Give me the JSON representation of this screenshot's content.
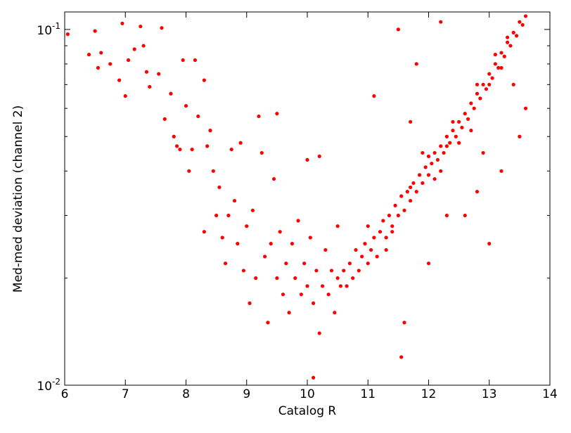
{
  "chart_data": {
    "type": "scatter",
    "xlabel": "Catalog R",
    "ylabel": "Med-med deviation (channel 2)",
    "color": "#ff0000",
    "xlim": [
      6,
      14
    ],
    "xticks": [
      6,
      7,
      8,
      9,
      10,
      11,
      12,
      13,
      14
    ],
    "ylim": [
      0.01,
      0.112
    ],
    "ylog": true,
    "yticks": [
      {
        "value": 0.01,
        "label": "10^-2"
      },
      {
        "value": 0.1,
        "label": "10^-1"
      }
    ],
    "yminorticks": [
      0.02,
      0.03,
      0.04,
      0.05,
      0.06,
      0.07,
      0.08,
      0.09
    ],
    "x": [
      6.05,
      6.4,
      6.5,
      6.55,
      6.6,
      6.75,
      6.9,
      6.95,
      7.0,
      7.05,
      7.15,
      7.25,
      7.3,
      7.35,
      7.4,
      7.55,
      7.6,
      7.65,
      7.75,
      7.8,
      7.85,
      7.9,
      7.95,
      8.0,
      8.1,
      8.05,
      8.15,
      8.2,
      8.3,
      8.35,
      8.4,
      8.45,
      8.3,
      8.5,
      8.55,
      8.6,
      8.65,
      8.7,
      8.75,
      8.8,
      8.85,
      8.9,
      8.95,
      9.0,
      9.05,
      9.1,
      9.15,
      9.2,
      9.25,
      9.3,
      9.35,
      9.4,
      9.45,
      9.5,
      9.5,
      9.55,
      9.6,
      9.65,
      9.7,
      9.75,
      9.8,
      9.85,
      9.9,
      9.95,
      10.0,
      10.0,
      10.05,
      10.1,
      10.1,
      10.15,
      10.2,
      10.2,
      10.25,
      10.3,
      10.35,
      10.4,
      10.45,
      10.5,
      10.5,
      10.55,
      10.6,
      10.65,
      10.7,
      10.75,
      10.8,
      10.85,
      10.9,
      10.95,
      11.0,
      11.0,
      11.05,
      11.1,
      11.15,
      11.2,
      11.25,
      11.3,
      11.35,
      11.4,
      11.45,
      11.5,
      11.55,
      11.6,
      11.65,
      11.7,
      11.75,
      11.8,
      11.85,
      11.9,
      11.95,
      12.0,
      12.0,
      12.05,
      12.1,
      12.15,
      12.2,
      12.25,
      12.3,
      12.35,
      12.4,
      12.45,
      12.5,
      12.55,
      12.6,
      12.65,
      12.7,
      12.75,
      12.8,
      12.85,
      12.9,
      12.95,
      13.0,
      13.05,
      13.1,
      13.15,
      13.2,
      13.25,
      13.3,
      13.35,
      13.4,
      13.45,
      13.5,
      13.55,
      13.6,
      11.55,
      11.6,
      11.7,
      12.0,
      12.3,
      12.8,
      13.0,
      13.2,
      13.5,
      13.6,
      11.1,
      11.5,
      12.2,
      12.9,
      11.8,
      12.6,
      13.4,
      11.3,
      11.7,
      12.1,
      12.4,
      12.7,
      13.1,
      13.3,
      12.5,
      11.9,
      12.2,
      12.8,
      13.2,
      13.0,
      12.3,
      11.4
    ],
    "y": [
      0.097,
      0.085,
      0.099,
      0.078,
      0.086,
      0.08,
      0.072,
      0.104,
      0.065,
      0.082,
      0.088,
      0.102,
      0.09,
      0.076,
      0.069,
      0.075,
      0.101,
      0.056,
      0.066,
      0.05,
      0.047,
      0.046,
      0.082,
      0.061,
      0.046,
      0.04,
      0.082,
      0.057,
      0.072,
      0.047,
      0.052,
      0.04,
      0.027,
      0.03,
      0.036,
      0.026,
      0.022,
      0.03,
      0.046,
      0.033,
      0.025,
      0.048,
      0.021,
      0.028,
      0.017,
      0.031,
      0.02,
      0.057,
      0.045,
      0.023,
      0.015,
      0.025,
      0.038,
      0.02,
      0.058,
      0.027,
      0.018,
      0.022,
      0.016,
      0.025,
      0.02,
      0.029,
      0.018,
      0.022,
      0.043,
      0.019,
      0.026,
      0.0105,
      0.017,
      0.021,
      0.044,
      0.014,
      0.019,
      0.024,
      0.018,
      0.021,
      0.016,
      0.02,
      0.028,
      0.019,
      0.021,
      0.019,
      0.022,
      0.02,
      0.024,
      0.021,
      0.023,
      0.025,
      0.022,
      0.028,
      0.024,
      0.026,
      0.023,
      0.027,
      0.029,
      0.026,
      0.03,
      0.028,
      0.032,
      0.03,
      0.034,
      0.031,
      0.035,
      0.033,
      0.037,
      0.035,
      0.039,
      0.037,
      0.041,
      0.039,
      0.044,
      0.042,
      0.045,
      0.043,
      0.047,
      0.045,
      0.05,
      0.048,
      0.052,
      0.05,
      0.055,
      0.053,
      0.058,
      0.056,
      0.062,
      0.06,
      0.066,
      0.064,
      0.07,
      0.068,
      0.075,
      0.073,
      0.08,
      0.078,
      0.086,
      0.084,
      0.092,
      0.09,
      0.098,
      0.096,
      0.105,
      0.103,
      0.109,
      0.012,
      0.015,
      0.055,
      0.022,
      0.03,
      0.035,
      0.025,
      0.04,
      0.05,
      0.06,
      0.065,
      0.1,
      0.105,
      0.045,
      0.08,
      0.03,
      0.07,
      0.024,
      0.036,
      0.038,
      0.055,
      0.052,
      0.085,
      0.095,
      0.048,
      0.045,
      0.04,
      0.07,
      0.078,
      0.07,
      0.047,
      0.027
    ]
  }
}
